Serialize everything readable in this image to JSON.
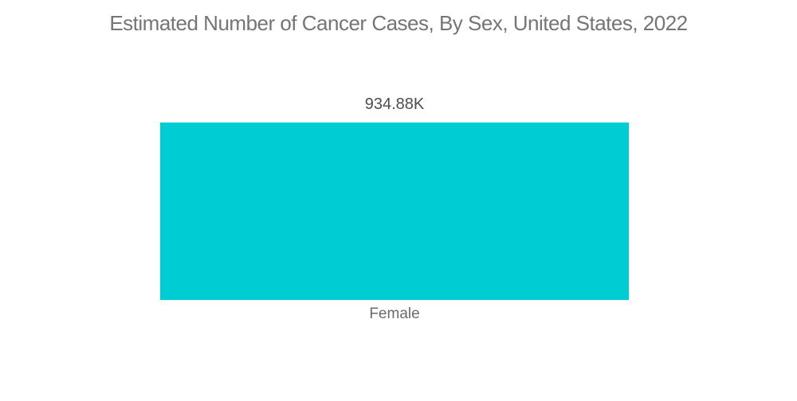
{
  "page": {
    "background_color": "#ffffff"
  },
  "chart_data": {
    "type": "bar",
    "orientation": "vertical",
    "title": "Estimated Number of Cancer Cases, By Sex, United States, 2022",
    "categories": [
      "Female"
    ],
    "values": [
      934880
    ],
    "value_labels": [
      "934.88K"
    ],
    "series": [
      {
        "name": "Estimated Number of Cancer Cases",
        "values": [
          934880
        ]
      }
    ],
    "xlabel": "",
    "ylabel": "",
    "axis_ticks_visible": false,
    "grid": false,
    "legend_position": "none",
    "bar_color": "#00cdd3",
    "title_color": "#757575",
    "value_label_color": "#4d4d4d",
    "category_label_color": "#6b6b6b"
  }
}
